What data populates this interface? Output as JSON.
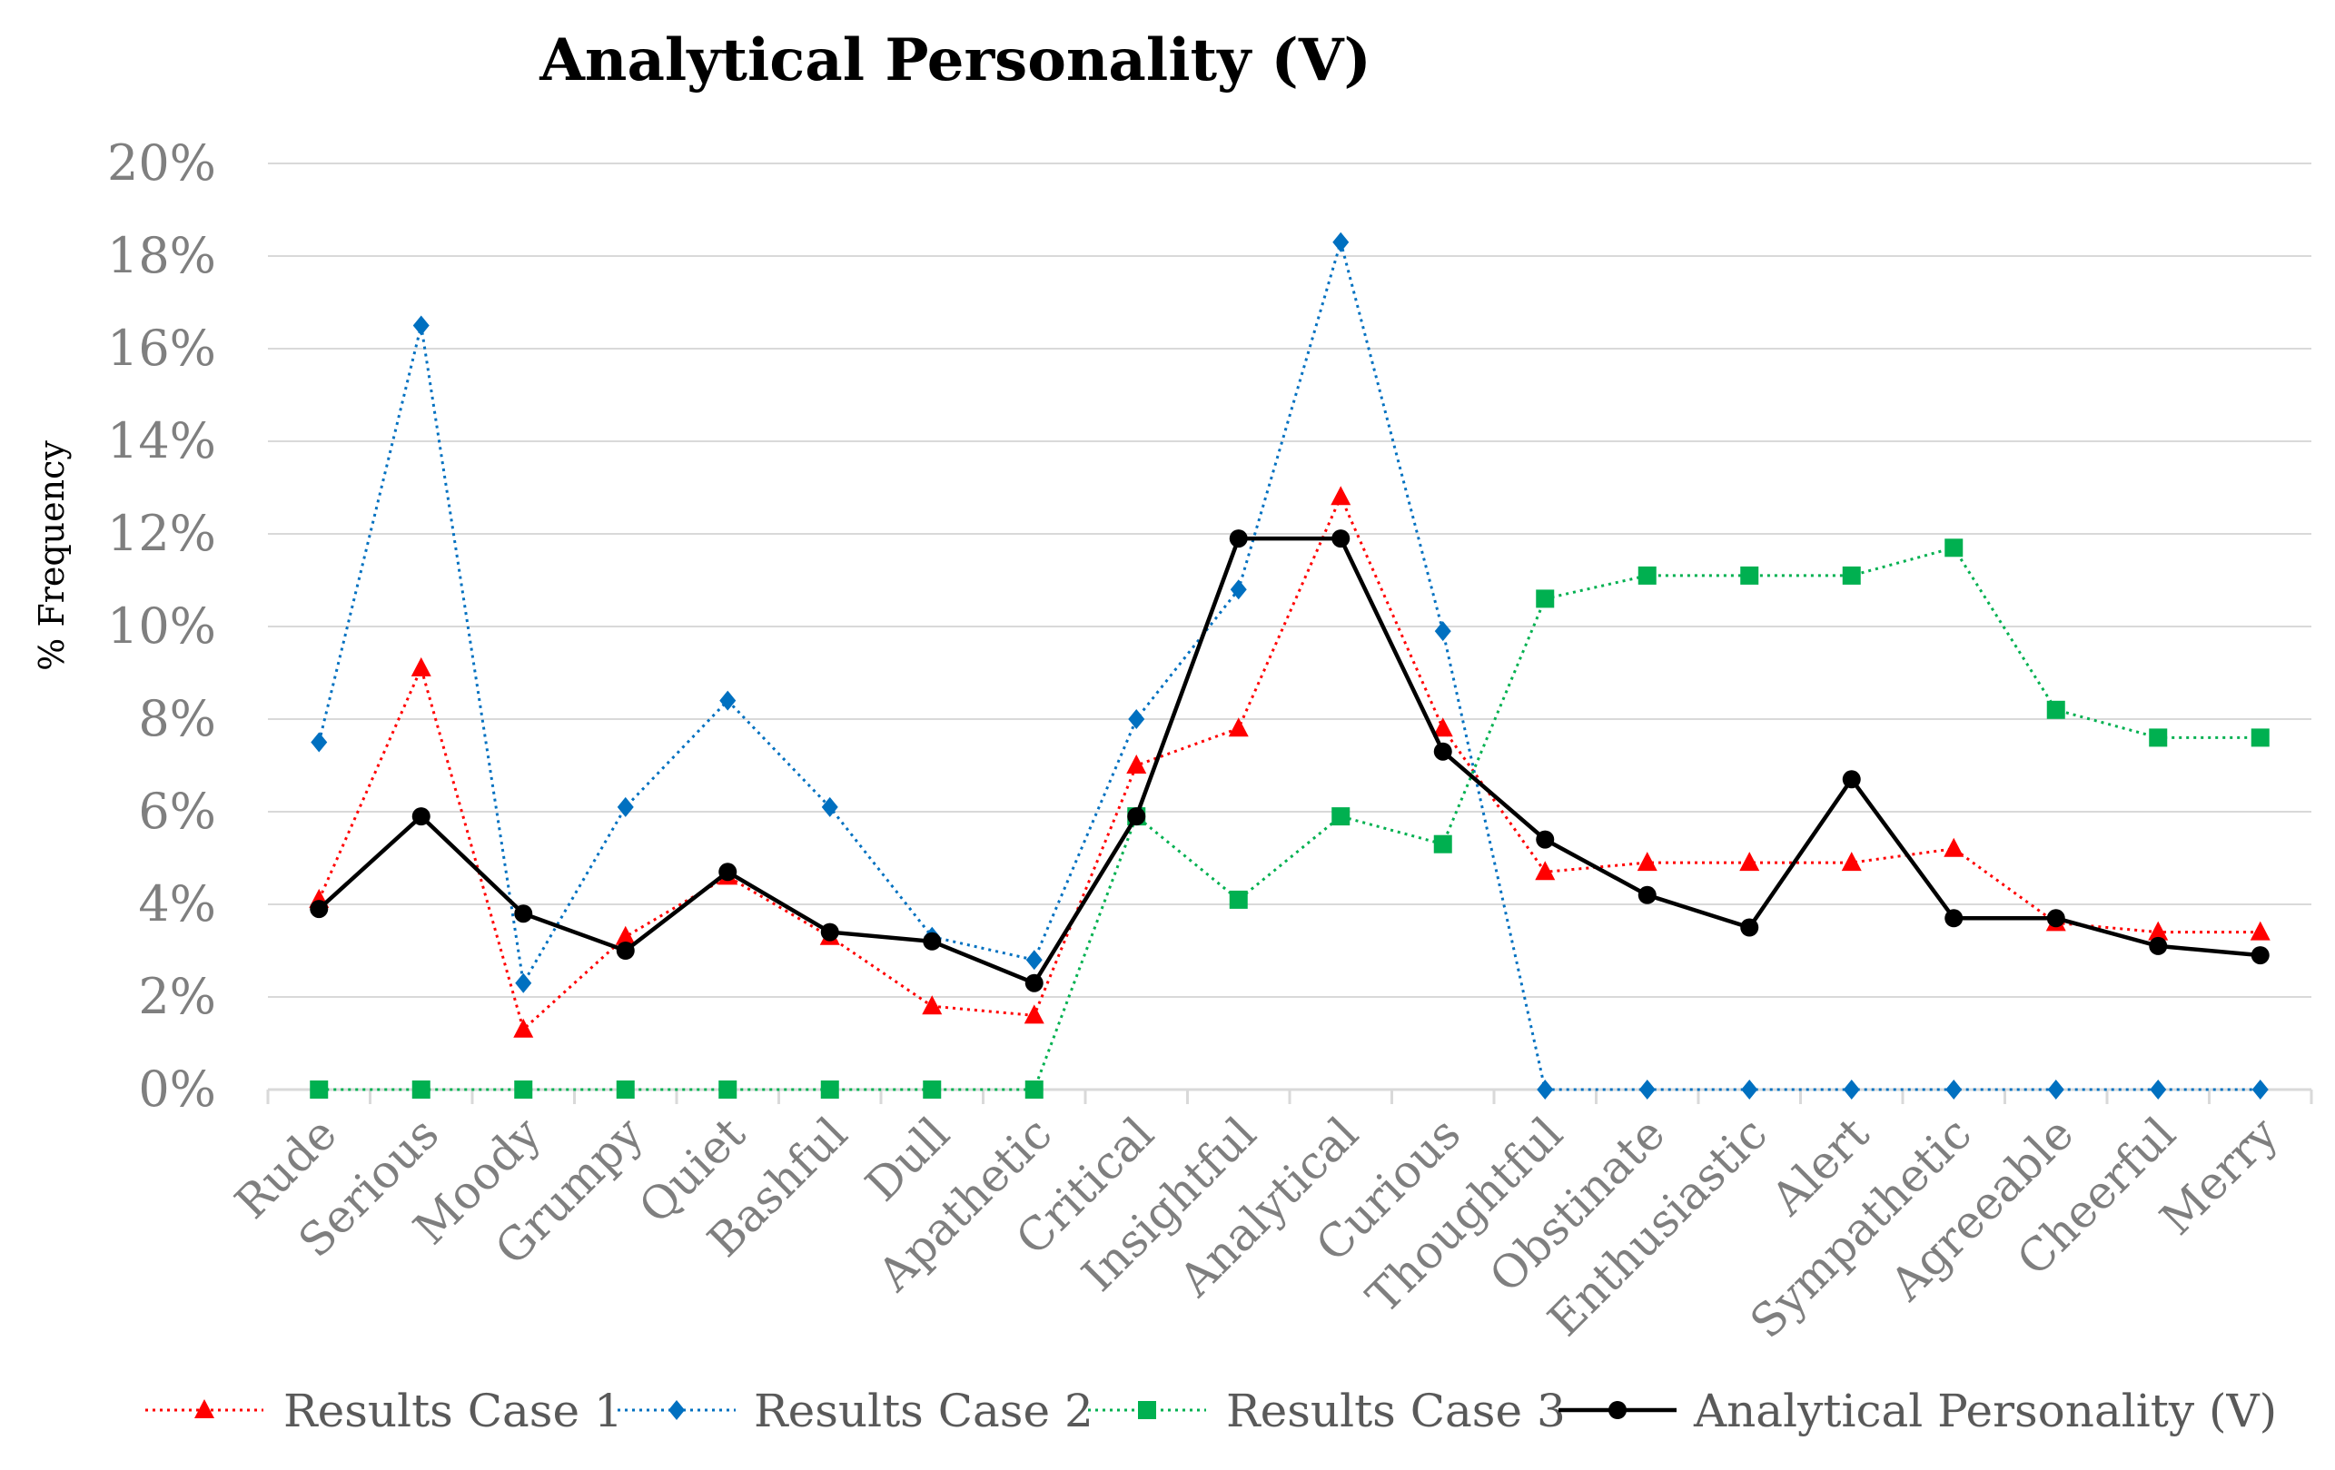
{
  "chart_data": {
    "type": "line",
    "title": "Analytical Personality (V)",
    "xlabel": "",
    "ylabel": "% Frequency",
    "ylim": [
      0,
      20
    ],
    "yticks": [
      "0%",
      "2%",
      "4%",
      "6%",
      "8%",
      "10%",
      "12%",
      "14%",
      "16%",
      "18%",
      "20%"
    ],
    "categories": [
      "Rude",
      "Serious",
      "Moody",
      "Grumpy",
      "Quiet",
      "Bashful",
      "Dull",
      "Apathetic",
      "Critical",
      "Insightful",
      "Analytical",
      "Curious",
      "Thoughtful",
      "Obstinate",
      "Enthusiastic",
      "Alert",
      "Sympathetic",
      "Agreeable",
      "Cheerful",
      "Merry"
    ],
    "series": [
      {
        "name": "Results Case 1",
        "color": "#ff0000",
        "marker": "triangle",
        "dash": "dotted",
        "values": [
          4.1,
          9.1,
          1.3,
          3.3,
          4.6,
          3.3,
          1.8,
          1.6,
          7.0,
          7.8,
          12.8,
          7.8,
          4.7,
          4.9,
          4.9,
          4.9,
          5.2,
          3.6,
          3.4,
          3.4
        ]
      },
      {
        "name": "Results Case 2",
        "color": "#0070c0",
        "marker": "diamond",
        "dash": "dotted",
        "values": [
          7.5,
          16.5,
          2.3,
          6.1,
          8.4,
          6.1,
          3.3,
          2.8,
          8.0,
          10.8,
          18.3,
          9.9,
          0,
          0,
          0,
          0,
          0,
          0,
          0,
          0
        ]
      },
      {
        "name": "Results Case 3",
        "color": "#00b050",
        "marker": "square",
        "dash": "dotted",
        "values": [
          0,
          0,
          0,
          0,
          0,
          0,
          0,
          0,
          5.9,
          4.1,
          5.9,
          5.3,
          10.6,
          11.1,
          11.1,
          11.1,
          11.7,
          8.2,
          7.6,
          7.6
        ]
      },
      {
        "name": "Analytical Personality (V)",
        "color": "#000000",
        "marker": "circle",
        "dash": "solid",
        "values": [
          3.9,
          5.9,
          3.8,
          3.0,
          4.7,
          3.4,
          3.2,
          2.3,
          5.9,
          11.9,
          11.9,
          7.3,
          5.4,
          4.2,
          3.5,
          6.7,
          3.7,
          3.7,
          3.1,
          2.9
        ]
      }
    ],
    "legend_position": "bottom",
    "grid": true
  }
}
